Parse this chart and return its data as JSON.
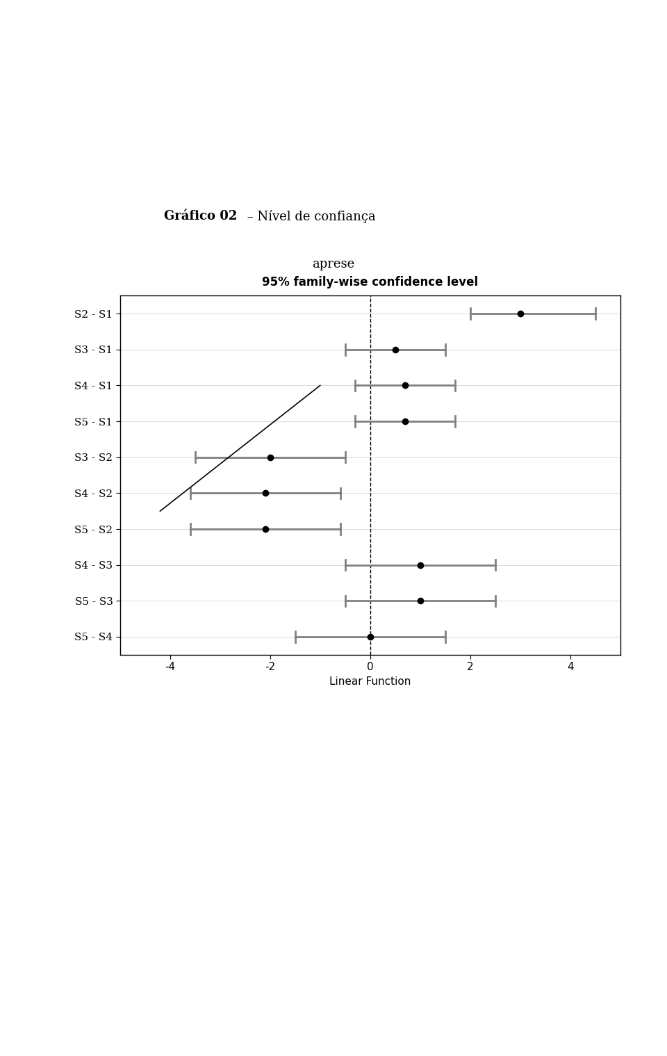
{
  "title_bold": "Gráfico 02",
  "title_rest": " – Nível de confiança",
  "subtitle": "aprese",
  "chart_title": "95% family-wise confidence level",
  "xlabel": "Linear Function",
  "xlim": [
    -5,
    5
  ],
  "xticks": [
    -4,
    -2,
    0,
    2,
    4
  ],
  "categories": [
    "S2 - S1",
    "S3 - S1",
    "S4 - S1",
    "S5 - S1",
    "S3 - S2",
    "S4 - S2",
    "S5 - S2",
    "S4 - S3",
    "S5 - S3",
    "S5 - S4"
  ],
  "centers": [
    3.0,
    0.5,
    0.7,
    0.7,
    -2.0,
    -2.1,
    -2.1,
    1.0,
    1.0,
    0.0
  ],
  "lowers": [
    2.0,
    -0.5,
    -0.3,
    -0.3,
    -3.5,
    -3.6,
    -3.6,
    -0.5,
    -0.5,
    -1.5
  ],
  "uppers": [
    4.5,
    1.5,
    1.7,
    1.7,
    -0.5,
    -0.6,
    -0.6,
    2.5,
    2.5,
    1.5
  ],
  "line_color": "#808080",
  "dot_color": "#000000",
  "dashed_line_x": 0,
  "diagonal_line": [
    [
      0.0,
      9
    ],
    [
      0.0,
      0
    ]
  ],
  "background_color": "#ffffff",
  "plot_bg_color": "#ffffff",
  "border_color": "#000000",
  "font_size_title": 13,
  "font_size_chart_title": 12,
  "font_size_labels": 11,
  "font_size_ticks": 11
}
